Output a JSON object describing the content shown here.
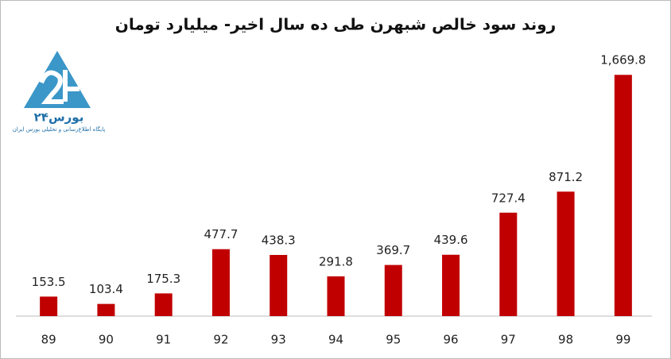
{
  "logo": {
    "name": "بورس۲۴",
    "tagline": "پایگاه اطلاع‌رسانی و تحلیلی بورس ایران"
  },
  "chart_data": {
    "type": "bar",
    "title": "روند سود خالص شبهرن طی ده سال اخیر- میلیارد تومان",
    "categories": [
      "89",
      "90",
      "91",
      "92",
      "93",
      "94",
      "95",
      "96",
      "97",
      "98",
      "99"
    ],
    "values": [
      153.5,
      103.4,
      175.3,
      477.7,
      438.3,
      291.8,
      369.7,
      439.6,
      727.4,
      871.2,
      1669.8
    ],
    "value_labels": [
      "153.5",
      "103.4",
      "175.3",
      "477.7",
      "438.3",
      "291.8",
      "369.7",
      "439.6",
      "727.4",
      "871.2",
      "1,669.8"
    ],
    "color": "#c00000",
    "ylim": [
      20,
      1720
    ]
  }
}
